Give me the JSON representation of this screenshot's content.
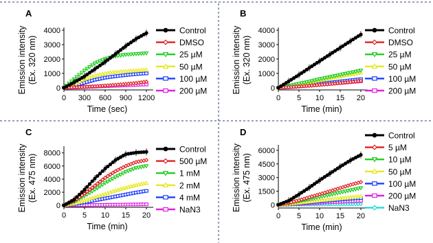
{
  "chart_data": [
    {
      "type": "line",
      "panel_label": "A",
      "xlabel": "Time (sec)",
      "ylabel": [
        "Emission intensity",
        "(Ex. 320 nm)"
      ],
      "xlim": [
        0,
        1260
      ],
      "ylim": [
        -150,
        4000
      ],
      "xticks": [
        0,
        300,
        600,
        900,
        1200
      ],
      "yticks": [
        0,
        1000,
        2000,
        3000,
        4000
      ],
      "xticklabels": [
        "0",
        "300",
        "600",
        "900",
        "1200"
      ],
      "yticklabels": [
        "0",
        "1000",
        "2000",
        "3000",
        "4000"
      ],
      "x": [
        0,
        150,
        300,
        450,
        600,
        750,
        900,
        1050,
        1200
      ],
      "series": [
        {
          "name": "Control",
          "color": "#000000",
          "marker": "circle",
          "values": [
            0,
            380,
            800,
            1300,
            1800,
            2350,
            2900,
            3400,
            3800
          ]
        },
        {
          "name": "DMSO",
          "color": "#e02020",
          "marker": "diamond",
          "values": [
            0,
            30,
            60,
            100,
            150,
            200,
            260,
            330,
            420
          ]
        },
        {
          "name": "25 µM",
          "color": "#22cc22",
          "marker": "tri-down",
          "values": [
            0,
            600,
            1200,
            1700,
            2000,
            2200,
            2300,
            2350,
            2400
          ]
        },
        {
          "name": "50 µM",
          "color": "#e8e820",
          "marker": "tri-up",
          "values": [
            0,
            300,
            600,
            850,
            1000,
            1100,
            1150,
            1200,
            1250
          ]
        },
        {
          "name": "100 µM",
          "color": "#1a3cff",
          "marker": "square",
          "values": [
            0,
            150,
            350,
            550,
            700,
            800,
            880,
            950,
            1000
          ]
        },
        {
          "name": "200 µM",
          "color": "#e020e0",
          "marker": "square",
          "values": [
            0,
            20,
            50,
            80,
            110,
            140,
            170,
            200,
            230
          ]
        }
      ]
    },
    {
      "type": "line",
      "panel_label": "B",
      "xlabel": "Time (min)",
      "ylabel": [
        "Emission intensity",
        "(Ex. 320 nm)"
      ],
      "xlim": [
        0,
        21
      ],
      "ylim": [
        -150,
        4000
      ],
      "xticks": [
        0,
        5,
        10,
        15,
        20
      ],
      "yticks": [
        0,
        1000,
        2000,
        3000,
        4000
      ],
      "xticklabels": [
        "0",
        "5",
        "10",
        "15",
        "20"
      ],
      "yticklabels": [
        "0",
        "1000",
        "2000",
        "3000",
        "4000"
      ],
      "x": [
        0,
        2.5,
        5,
        7.5,
        10,
        12.5,
        15,
        17.5,
        20
      ],
      "series": [
        {
          "name": "Control",
          "color": "#000000",
          "marker": "circle",
          "values": [
            0,
            450,
            900,
            1380,
            1850,
            2320,
            2780,
            3250,
            3700
          ]
        },
        {
          "name": "DMSO",
          "color": "#e02020",
          "marker": "diamond",
          "values": [
            0,
            40,
            90,
            140,
            200,
            260,
            330,
            400,
            480
          ]
        },
        {
          "name": "25 µM",
          "color": "#22cc22",
          "marker": "tri-down",
          "values": [
            0,
            130,
            280,
            430,
            600,
            750,
            900,
            1050,
            1200
          ]
        },
        {
          "name": "50 µM",
          "color": "#e8e820",
          "marker": "tri-up",
          "values": [
            0,
            120,
            250,
            380,
            520,
            660,
            800,
            930,
            1050
          ]
        },
        {
          "name": "100 µM",
          "color": "#1a3cff",
          "marker": "square",
          "values": [
            0,
            60,
            130,
            200,
            280,
            360,
            440,
            520,
            600
          ]
        },
        {
          "name": "200 µM",
          "color": "#e020e0",
          "marker": "square",
          "values": [
            0,
            50,
            100,
            160,
            220,
            280,
            340,
            400,
            450
          ]
        }
      ]
    },
    {
      "type": "line",
      "panel_label": "C",
      "xlabel": "Time (min)",
      "ylabel": [
        "Emission intensity",
        "(Ex. 475 nm)"
      ],
      "xlim": [
        0,
        21
      ],
      "ylim": [
        -300,
        8600
      ],
      "xticks": [
        0,
        5,
        10,
        15,
        20
      ],
      "yticks": [
        0,
        2000,
        4000,
        6000,
        8000
      ],
      "xticklabels": [
        "0",
        "5",
        "10",
        "15",
        "20"
      ],
      "yticklabels": [
        "0",
        "2000",
        "4000",
        "6000",
        "8000"
      ],
      "x": [
        0,
        2.5,
        5,
        7.5,
        10,
        12.5,
        15,
        17.5,
        20
      ],
      "series": [
        {
          "name": "Control",
          "color": "#000000",
          "marker": "circle",
          "values": [
            0,
            900,
            2400,
            4100,
            5600,
            6900,
            7800,
            8050,
            8150
          ]
        },
        {
          "name": "500 µM",
          "color": "#e02020",
          "marker": "diamond",
          "values": [
            0,
            700,
            1800,
            3000,
            4200,
            5200,
            6000,
            6600,
            6900
          ]
        },
        {
          "name": "1 mM",
          "color": "#22cc22",
          "marker": "tri-down",
          "values": [
            0,
            550,
            1400,
            2400,
            3400,
            4300,
            5100,
            5700,
            6000
          ]
        },
        {
          "name": "2 mM",
          "color": "#e8e820",
          "marker": "tri-up",
          "values": [
            0,
            300,
            750,
            1250,
            1750,
            2250,
            2700,
            3100,
            3400
          ]
        },
        {
          "name": "4 mM",
          "color": "#1a3cff",
          "marker": "square",
          "values": [
            0,
            200,
            450,
            750,
            1050,
            1350,
            1650,
            1950,
            2200
          ]
        },
        {
          "name": "NaN3",
          "color": "#e020e0",
          "marker": "square",
          "values": [
            0,
            20,
            40,
            60,
            80,
            100,
            120,
            140,
            160
          ]
        }
      ]
    },
    {
      "type": "line",
      "panel_label": "D",
      "xlabel": "Time (min)",
      "ylabel": [
        "Emission intensity",
        "(Ex. 475 nm)"
      ],
      "xlim": [
        0,
        21
      ],
      "ylim": [
        -350,
        6300
      ],
      "xticks": [
        0,
        5,
        10,
        15,
        20
      ],
      "yticks": [
        0,
        1500,
        3000,
        4500,
        6000
      ],
      "xticklabels": [
        "0",
        "5",
        "10",
        "15",
        "20"
      ],
      "yticklabels": [
        "0",
        "1500",
        "3000",
        "4500",
        "6000"
      ],
      "x": [
        0,
        2.5,
        5,
        7.5,
        10,
        12.5,
        15,
        17.5,
        20
      ],
      "series": [
        {
          "name": "Control",
          "color": "#000000",
          "marker": "circle",
          "values": [
            0,
            450,
            1150,
            1900,
            2700,
            3450,
            4200,
            4900,
            5500
          ]
        },
        {
          "name": "5 µM",
          "color": "#e02020",
          "marker": "diamond",
          "values": [
            0,
            200,
            500,
            830,
            1160,
            1500,
            1850,
            2200,
            2500
          ]
        },
        {
          "name": "10 µM",
          "color": "#22cc22",
          "marker": "tri-down",
          "values": [
            0,
            150,
            380,
            620,
            860,
            1100,
            1350,
            1600,
            1850
          ]
        },
        {
          "name": "50 µM",
          "color": "#e8e820",
          "marker": "tri-up",
          "values": [
            0,
            90,
            220,
            350,
            480,
            600,
            720,
            840,
            950
          ]
        },
        {
          "name": "100 µM",
          "color": "#1a3cff",
          "marker": "square",
          "values": [
            0,
            70,
            170,
            270,
            370,
            470,
            570,
            670,
            750
          ]
        },
        {
          "name": "200 µM",
          "color": "#e020e0",
          "marker": "square",
          "values": [
            0,
            40,
            100,
            160,
            220,
            280,
            340,
            400,
            450
          ]
        },
        {
          "name": "NaN3",
          "color": "#22d8d8",
          "marker": "diamond",
          "values": [
            0,
            10,
            20,
            30,
            40,
            50,
            60,
            70,
            80
          ]
        }
      ]
    }
  ]
}
